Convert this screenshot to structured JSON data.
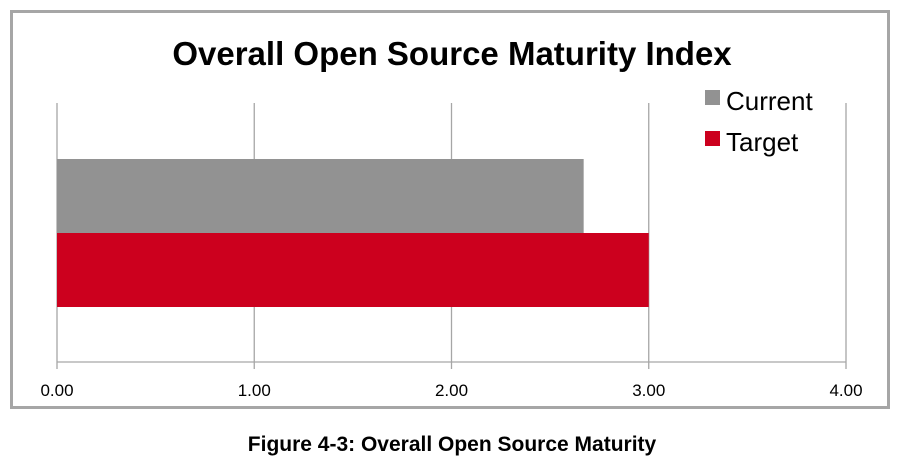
{
  "chart_data": {
    "type": "bar",
    "orientation": "horizontal",
    "title": "Overall Open Source Maturity Index",
    "categories": [
      ""
    ],
    "series": [
      {
        "name": "Current",
        "values": [
          2.67
        ],
        "color": "#929292"
      },
      {
        "name": "Target",
        "values": [
          3.0
        ],
        "color": "#cc001e"
      }
    ],
    "xlim": [
      0,
      4
    ],
    "x_ticks": [
      "0.00",
      "1.00",
      "2.00",
      "3.00",
      "4.00"
    ],
    "xlabel": "",
    "ylabel": "",
    "grid": "vertical",
    "legend_position": "top-right"
  },
  "caption": "Figure 4-3: Overall Open Source Maturity",
  "colors": {
    "frame_border": "#a6a6a6",
    "gridline": "#a6a6a6"
  }
}
